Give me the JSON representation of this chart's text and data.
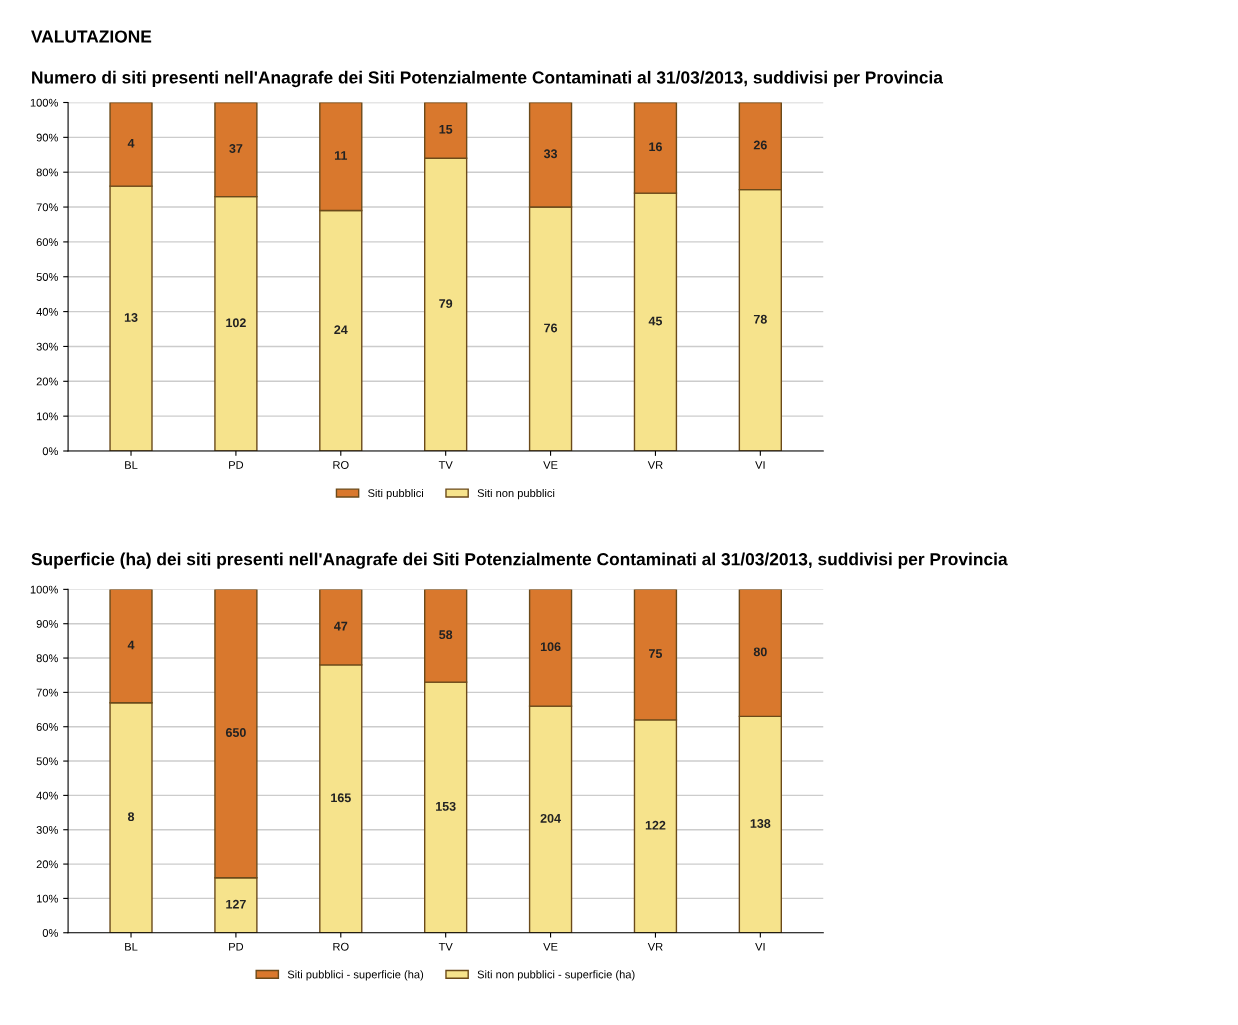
{
  "chart_data": [
    {
      "type": "bar",
      "title": "Numero di siti presenti nell'Anagrafe dei Siti Potenzialmente Contaminati al 31/03/2013, suddivisi per Provincia",
      "categories": [
        "BL",
        "PD",
        "RO",
        "TV",
        "VE",
        "VR",
        "VI"
      ],
      "stacked": true,
      "series": [
        {
          "name": "Siti non pubblici",
          "color": "#f6e38c",
          "values": [
            76,
            73,
            69,
            84,
            70,
            74,
            75
          ]
        },
        {
          "name": "Siti pubblici",
          "color": "#d9782d",
          "values": [
            24,
            27,
            31,
            16,
            30,
            26,
            25
          ]
        }
      ],
      "annotations": [
        "VALUTAZIONE",
        "13",
        "102",
        "24",
        "79",
        "76",
        "45",
        "78",
        "4",
        "37",
        "11",
        "15",
        "33",
        "16",
        "26"
      ],
      "ylim": [
        0,
        100
      ],
      "yticks": [
        {
          "value": 0,
          "label": "0%"
        },
        {
          "value": 10,
          "label": "10%"
        },
        {
          "value": 20,
          "label": "20%"
        },
        {
          "value": 30,
          "label": "30%"
        },
        {
          "value": 40,
          "label": "40%"
        },
        {
          "value": 50,
          "label": "50%"
        },
        {
          "value": 60,
          "label": "60%"
        },
        {
          "value": 70,
          "label": "70%"
        },
        {
          "value": 80,
          "label": "80%"
        },
        {
          "value": 90,
          "label": "90%"
        },
        {
          "value": 100,
          "label": "100%"
        }
      ],
      "grid": "y",
      "legend": "bottom"
    },
    {
      "type": "bar",
      "title": "Superficie (ha) dei siti presenti nell'Anagrafe dei Siti Potenzialmente Contaminati al 31/03/2013, suddivisi per Provincia",
      "categories": [
        "BL",
        "PD",
        "RO",
        "TV",
        "VE",
        "VR",
        "VI"
      ],
      "stacked": true,
      "series": [
        {
          "name": "Siti non pubblici - superficie (ha)",
          "color": "#f6e38c",
          "values": [
            67,
            16,
            78,
            73,
            66,
            62,
            63
          ]
        },
        {
          "name": "Siti pubblici - superficie (ha)",
          "color": "#d9782d",
          "values": [
            33,
            84,
            22,
            27,
            34,
            38,
            37
          ]
        }
      ],
      "annotations": [
        "8",
        "127",
        "165",
        "153",
        "204",
        "122",
        "138",
        "4",
        "650",
        "47",
        "58",
        "106",
        "75",
        "80"
      ],
      "ylim": [
        0,
        100
      ],
      "yticks": [
        {
          "value": 0,
          "label": "0%"
        },
        {
          "value": 10,
          "label": "10%"
        },
        {
          "value": 20,
          "label": "20%"
        },
        {
          "value": 30,
          "label": "30%"
        },
        {
          "value": 40,
          "label": "40%"
        },
        {
          "value": 50,
          "label": "50%"
        },
        {
          "value": 60,
          "label": "60%"
        },
        {
          "value": 70,
          "label": "70%"
        },
        {
          "value": 80,
          "label": "80%"
        },
        {
          "value": 90,
          "label": "90%"
        },
        {
          "value": 100,
          "label": "100%"
        }
      ],
      "grid": "y",
      "legend": "bottom"
    }
  ]
}
